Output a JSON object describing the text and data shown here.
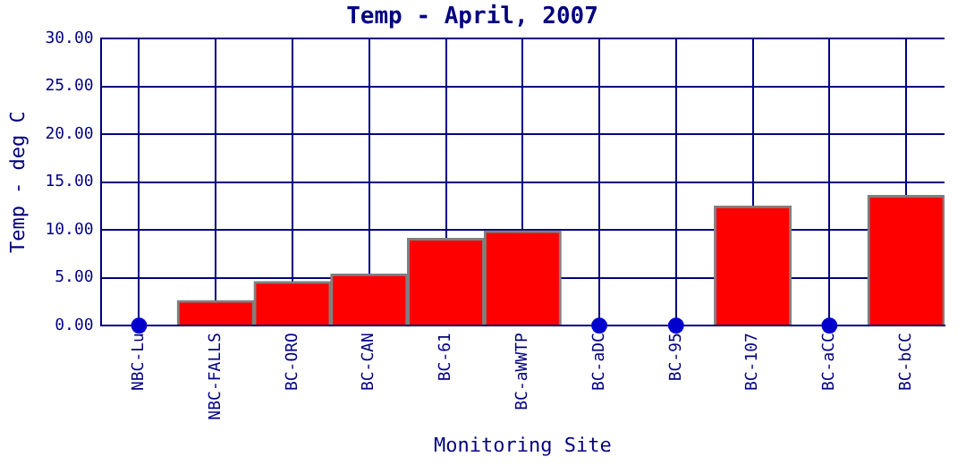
{
  "chart_data": {
    "type": "bar",
    "title": "Temp - April, 2007",
    "xlabel": "Monitoring Site",
    "ylabel": "Temp - deg C",
    "categories": [
      "NBC-Lu",
      "NBC-FALLS",
      "BC-ORO",
      "BC-CAN",
      "BC-61",
      "BC-aWWTP",
      "BC-aDC",
      "BC-95",
      "BC-107",
      "BC-aCC",
      "BC-bCC"
    ],
    "series": [
      {
        "color": "#ff0000",
        "values": [
          null,
          2.6,
          4.6,
          5.4,
          9.1,
          9.9,
          null,
          null,
          12.5,
          null,
          13.6
        ]
      },
      {
        "type": "scatter",
        "color": "#0000cc",
        "x": [
          "NBC-Lu",
          "BC-aDC",
          "BC-95",
          "BC-aCC"
        ],
        "values": [
          0,
          0,
          0,
          0
        ]
      }
    ],
    "ylim": [
      0,
      30
    ],
    "yticks": [
      {
        "value": 0,
        "label": "0.00"
      },
      {
        "value": 5,
        "label": "5.00"
      },
      {
        "value": 10,
        "label": "10.00"
      },
      {
        "value": 15,
        "label": "15.00"
      },
      {
        "value": 20,
        "label": "20.00"
      },
      {
        "value": 25,
        "label": "25.00"
      },
      {
        "value": 30,
        "label": "30.00"
      }
    ],
    "grid": true,
    "legend": false,
    "marker": "circle"
  }
}
